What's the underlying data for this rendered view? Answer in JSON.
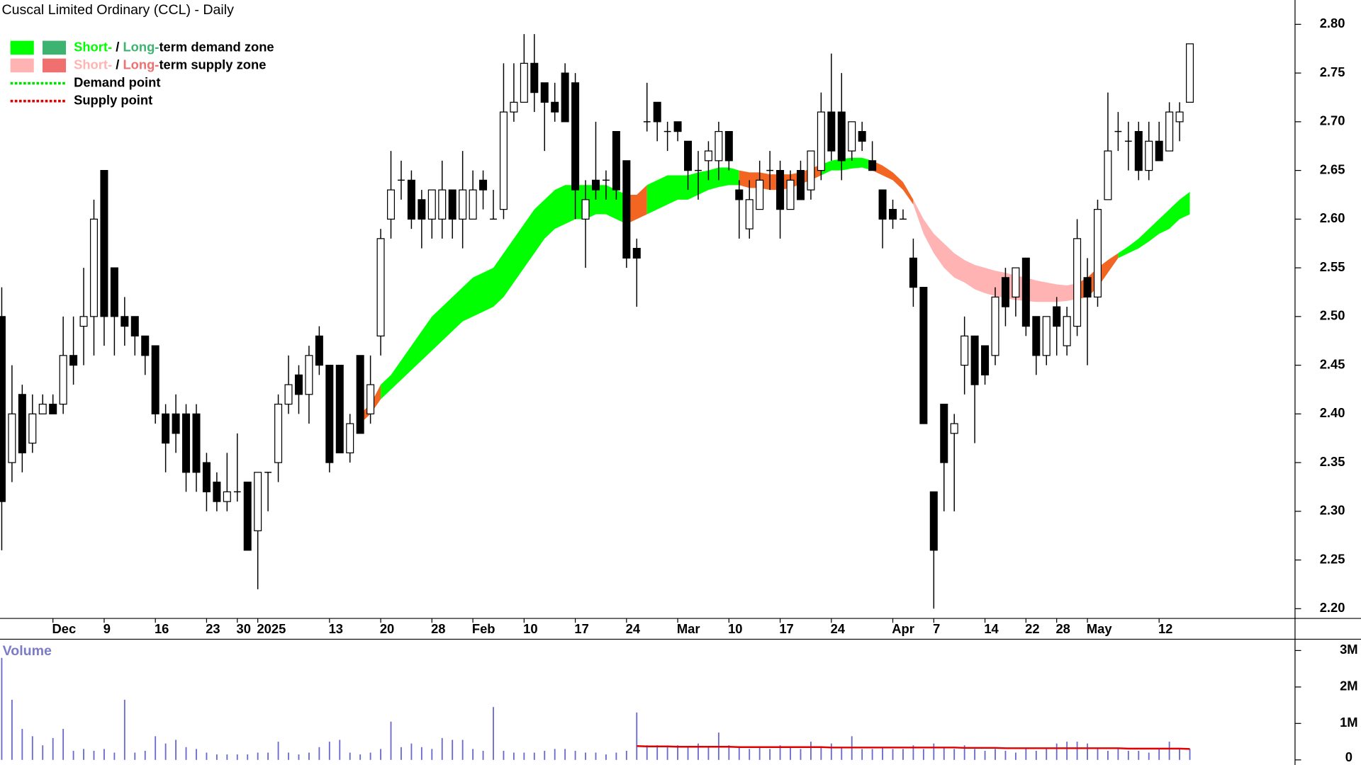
{
  "chart_data": {
    "type": "candlestick",
    "title": "Cuscal Limited Ordinary (CCL) - Daily",
    "volume_label": "Volume",
    "open": [
      2.5,
      2.35,
      2.42,
      2.37,
      2.4,
      2.41,
      2.41,
      2.46,
      2.49,
      2.5,
      2.65,
      2.55,
      2.5,
      2.5,
      2.48,
      2.47,
      2.4,
      2.4,
      2.4,
      2.4,
      2.35,
      2.33,
      2.31,
      2.32,
      2.33,
      2.28,
      2.34,
      2.35,
      2.41,
      2.44,
      2.42,
      2.48,
      2.45,
      2.45,
      2.36,
      2.46,
      2.4,
      2.48,
      2.6,
      2.64,
      2.64,
      2.62,
      2.6,
      2.6,
      2.63,
      2.6,
      2.6,
      2.64,
      2.6,
      2.61,
      2.71,
      2.72,
      2.76,
      2.74,
      2.72,
      2.75,
      2.74,
      2.6,
      2.64,
      2.64,
      2.69,
      2.66,
      2.57,
      2.7,
      2.72,
      2.69,
      2.7,
      2.68,
      2.65,
      2.66,
      2.66,
      2.69,
      2.63,
      2.59,
      2.61,
      2.65,
      2.65,
      2.61,
      2.65,
      2.63,
      2.65,
      2.71,
      2.71,
      2.67,
      2.69,
      2.66,
      2.63,
      2.61,
      2.6,
      2.56,
      2.53,
      2.32,
      2.41,
      2.38,
      2.45,
      2.48,
      2.47,
      2.46,
      2.54,
      2.52,
      2.56,
      2.5,
      2.46,
      2.51,
      2.47,
      2.49,
      2.54,
      2.52,
      2.62,
      2.69,
      2.68,
      2.69,
      2.65,
      2.68,
      2.67,
      2.7,
      2.72
    ],
    "high": [
      2.53,
      2.45,
      2.43,
      2.42,
      2.42,
      2.42,
      2.5,
      2.5,
      2.55,
      2.62,
      2.65,
      2.55,
      2.52,
      2.5,
      2.48,
      2.47,
      2.41,
      2.42,
      2.41,
      2.41,
      2.36,
      2.34,
      2.36,
      2.38,
      2.33,
      2.34,
      2.34,
      2.42,
      2.46,
      2.45,
      2.47,
      2.49,
      2.45,
      2.45,
      2.4,
      2.46,
      2.46,
      2.59,
      2.67,
      2.66,
      2.65,
      2.63,
      2.63,
      2.66,
      2.63,
      2.67,
      2.65,
      2.65,
      2.63,
      2.76,
      2.76,
      2.79,
      2.79,
      2.74,
      2.74,
      2.76,
      2.75,
      2.64,
      2.7,
      2.65,
      2.69,
      2.66,
      2.58,
      2.74,
      2.72,
      2.7,
      2.7,
      2.68,
      2.67,
      2.68,
      2.7,
      2.69,
      2.64,
      2.64,
      2.66,
      2.67,
      2.66,
      2.65,
      2.66,
      2.67,
      2.73,
      2.77,
      2.75,
      2.7,
      2.7,
      2.68,
      2.63,
      2.62,
      2.61,
      2.58,
      2.53,
      2.32,
      2.41,
      2.4,
      2.5,
      2.48,
      2.47,
      2.53,
      2.55,
      2.55,
      2.56,
      2.5,
      2.5,
      2.52,
      2.51,
      2.6,
      2.56,
      2.62,
      2.73,
      2.71,
      2.7,
      2.7,
      2.7,
      2.7,
      2.72,
      2.72,
      2.78
    ],
    "low": [
      2.26,
      2.33,
      2.34,
      2.36,
      2.4,
      2.4,
      2.4,
      2.43,
      2.45,
      2.46,
      2.47,
      2.46,
      2.47,
      2.46,
      2.44,
      2.39,
      2.34,
      2.36,
      2.32,
      2.32,
      2.3,
      2.3,
      2.3,
      2.31,
      2.26,
      2.22,
      2.3,
      2.33,
      2.4,
      2.4,
      2.39,
      2.44,
      2.34,
      2.36,
      2.35,
      2.38,
      2.39,
      2.46,
      2.58,
      2.62,
      2.59,
      2.57,
      2.58,
      2.58,
      2.58,
      2.57,
      2.6,
      2.61,
      2.6,
      2.6,
      2.7,
      2.72,
      2.71,
      2.67,
      2.7,
      2.7,
      2.6,
      2.55,
      2.62,
      2.62,
      2.62,
      2.55,
      2.51,
      2.69,
      2.68,
      2.67,
      2.68,
      2.63,
      2.62,
      2.64,
      2.64,
      2.65,
      2.58,
      2.58,
      2.61,
      2.63,
      2.58,
      2.61,
      2.62,
      2.62,
      2.64,
      2.66,
      2.64,
      2.66,
      2.67,
      2.65,
      2.57,
      2.59,
      2.6,
      2.51,
      2.39,
      2.2,
      2.3,
      2.3,
      2.42,
      2.37,
      2.43,
      2.45,
      2.49,
      2.5,
      2.48,
      2.44,
      2.45,
      2.46,
      2.46,
      2.48,
      2.45,
      2.51,
      2.62,
      2.67,
      2.65,
      2.64,
      2.64,
      2.66,
      2.67,
      2.68,
      2.72
    ],
    "close": [
      2.31,
      2.4,
      2.36,
      2.4,
      2.41,
      2.4,
      2.46,
      2.45,
      2.5,
      2.6,
      2.5,
      2.5,
      2.49,
      2.48,
      2.46,
      2.4,
      2.37,
      2.38,
      2.34,
      2.34,
      2.32,
      2.31,
      2.32,
      2.32,
      2.26,
      2.34,
      2.34,
      2.41,
      2.43,
      2.42,
      2.46,
      2.45,
      2.35,
      2.36,
      2.39,
      2.38,
      2.43,
      2.58,
      2.63,
      2.64,
      2.6,
      2.6,
      2.63,
      2.63,
      2.6,
      2.63,
      2.63,
      2.63,
      2.6,
      2.71,
      2.72,
      2.76,
      2.73,
      2.72,
      2.71,
      2.7,
      2.63,
      2.62,
      2.63,
      2.64,
      2.63,
      2.56,
      2.56,
      2.7,
      2.7,
      2.69,
      2.69,
      2.65,
      2.65,
      2.67,
      2.69,
      2.66,
      2.62,
      2.62,
      2.64,
      2.65,
      2.61,
      2.64,
      2.62,
      2.67,
      2.71,
      2.67,
      2.66,
      2.7,
      2.68,
      2.65,
      2.6,
      2.6,
      2.6,
      2.53,
      2.39,
      2.26,
      2.35,
      2.39,
      2.48,
      2.43,
      2.44,
      2.52,
      2.51,
      2.55,
      2.49,
      2.46,
      2.5,
      2.49,
      2.5,
      2.58,
      2.52,
      2.61,
      2.67,
      2.69,
      2.68,
      2.65,
      2.68,
      2.66,
      2.71,
      2.71,
      2.78
    ],
    "volume": [
      2.8,
      1.65,
      0.85,
      0.65,
      0.4,
      0.6,
      0.85,
      0.25,
      0.3,
      0.25,
      0.3,
      0.2,
      1.65,
      0.2,
      0.25,
      0.65,
      0.45,
      0.55,
      0.35,
      0.3,
      0.2,
      0.15,
      0.15,
      0.15,
      0.15,
      0.2,
      0.2,
      0.5,
      0.2,
      0.15,
      0.2,
      0.35,
      0.5,
      0.55,
      0.2,
      0.15,
      0.2,
      0.3,
      1.05,
      0.35,
      0.45,
      0.35,
      0.3,
      0.6,
      0.55,
      0.55,
      0.3,
      0.25,
      1.45,
      0.25,
      0.2,
      0.2,
      0.2,
      0.25,
      0.3,
      0.3,
      0.25,
      0.2,
      0.2,
      0.15,
      0.2,
      0.25,
      1.3,
      0.4,
      0.4,
      0.35,
      0.4,
      0.35,
      0.45,
      0.35,
      0.75,
      0.4,
      0.35,
      0.3,
      0.35,
      0.3,
      0.4,
      0.35,
      0.3,
      0.5,
      0.35,
      0.45,
      0.35,
      0.65,
      0.3,
      0.3,
      0.35,
      0.3,
      0.3,
      0.4,
      0.3,
      0.45,
      0.35,
      0.3,
      0.4,
      0.3,
      0.25,
      0.3,
      0.25,
      0.2,
      0.3,
      0.25,
      0.3,
      0.45,
      0.5,
      0.5,
      0.45,
      0.3,
      0.25,
      0.3,
      0.25,
      0.25,
      0.2,
      0.3,
      0.5,
      0.3,
      0.3
    ],
    "volume_color": "#6a6acd",
    "volume_ma": [
      null,
      null,
      null,
      null,
      null,
      null,
      null,
      null,
      null,
      null,
      null,
      null,
      null,
      null,
      null,
      null,
      null,
      null,
      null,
      null,
      null,
      null,
      null,
      null,
      null,
      null,
      null,
      null,
      null,
      null,
      null,
      null,
      null,
      null,
      null,
      null,
      null,
      null,
      null,
      null,
      null,
      null,
      null,
      null,
      null,
      null,
      null,
      null,
      null,
      null,
      null,
      null,
      null,
      null,
      null,
      null,
      null,
      null,
      null,
      null,
      null,
      null,
      0.38,
      0.37,
      0.37,
      0.37,
      0.36,
      0.36,
      0.36,
      0.36,
      0.36,
      0.36,
      0.35,
      0.35,
      0.35,
      0.35,
      0.35,
      0.35,
      0.35,
      0.35,
      0.35,
      0.34,
      0.34,
      0.34,
      0.34,
      0.34,
      0.34,
      0.34,
      0.34,
      0.34,
      0.34,
      0.34,
      0.34,
      0.34,
      0.33,
      0.33,
      0.33,
      0.33,
      0.32,
      0.32,
      0.32,
      0.32,
      0.32,
      0.32,
      0.32,
      0.32,
      0.32,
      0.32,
      0.32,
      0.32,
      0.31,
      0.31,
      0.31,
      0.31,
      0.31,
      0.31,
      0.3
    ],
    "volume_ma_color": "#e00000",
    "zone_top": [
      null,
      null,
      null,
      null,
      null,
      null,
      null,
      null,
      null,
      null,
      null,
      null,
      null,
      null,
      null,
      null,
      null,
      null,
      null,
      null,
      null,
      null,
      null,
      null,
      null,
      null,
      null,
      null,
      null,
      null,
      null,
      null,
      null,
      null,
      null,
      2.4,
      2.41,
      2.43,
      2.44,
      2.455,
      2.47,
      2.485,
      2.5,
      2.51,
      2.52,
      2.53,
      2.54,
      2.545,
      2.55,
      2.565,
      2.58,
      2.595,
      2.61,
      2.62,
      2.63,
      2.635,
      2.635,
      2.635,
      2.635,
      2.635,
      2.63,
      2.625,
      2.625,
      2.635,
      2.64,
      2.645,
      2.645,
      2.645,
      2.648,
      2.65,
      2.653,
      2.653,
      2.65,
      2.648,
      2.648,
      2.646,
      2.646,
      2.646,
      2.648,
      2.652,
      2.656,
      2.66,
      2.662,
      2.663,
      2.663,
      2.66,
      2.655,
      2.648,
      2.638,
      2.62,
      2.6,
      2.585,
      2.575,
      2.565,
      2.558,
      2.553,
      2.55,
      2.547,
      2.545,
      2.542,
      2.54,
      2.537,
      2.535,
      2.533,
      2.532,
      2.534,
      2.54,
      2.55,
      2.558,
      2.565,
      2.572,
      2.58,
      2.59,
      2.6,
      2.61,
      2.62,
      2.628
    ],
    "zone_bottom": [
      null,
      null,
      null,
      null,
      null,
      null,
      null,
      null,
      null,
      null,
      null,
      null,
      null,
      null,
      null,
      null,
      null,
      null,
      null,
      null,
      null,
      null,
      null,
      null,
      null,
      null,
      null,
      null,
      null,
      null,
      null,
      null,
      null,
      null,
      null,
      2.39,
      2.4,
      2.415,
      2.425,
      2.435,
      2.445,
      2.455,
      2.465,
      2.475,
      2.485,
      2.495,
      2.5,
      2.505,
      2.51,
      2.52,
      2.535,
      2.55,
      2.565,
      2.58,
      2.59,
      2.595,
      2.6,
      2.6,
      2.605,
      2.605,
      2.6,
      2.595,
      2.6,
      2.605,
      2.61,
      2.615,
      2.62,
      2.62,
      2.625,
      2.63,
      2.633,
      2.635,
      2.635,
      2.632,
      2.632,
      2.63,
      2.63,
      2.632,
      2.636,
      2.64,
      2.645,
      2.65,
      2.65,
      2.652,
      2.653,
      2.65,
      2.645,
      2.64,
      2.63,
      2.615,
      2.585,
      2.565,
      2.55,
      2.54,
      2.535,
      2.528,
      2.524,
      2.521,
      2.519,
      2.517,
      2.516,
      2.515,
      2.515,
      2.515,
      2.516,
      2.518,
      2.52,
      2.53,
      2.545,
      2.56,
      2.565,
      2.57,
      2.577,
      2.585,
      2.59,
      2.6,
      2.605
    ],
    "zones": [
      {
        "from": 35,
        "to": 36,
        "color": "#f26522"
      },
      {
        "from": 37,
        "to": 60,
        "color": "#00ff00"
      },
      {
        "from": 61,
        "to": 62,
        "color": "#f26522"
      },
      {
        "from": 63,
        "to": 71,
        "color": "#00ff00"
      },
      {
        "from": 72,
        "to": 79,
        "color": "#f26522"
      },
      {
        "from": 80,
        "to": 84,
        "color": "#00ff00"
      },
      {
        "from": 85,
        "to": 88,
        "color": "#f26522"
      },
      {
        "from": 89,
        "to": 104,
        "color": "#ffb3b3"
      },
      {
        "from": 105,
        "to": 108,
        "color": "#f26522"
      },
      {
        "from": 109,
        "to": 116,
        "color": "#00ff00"
      }
    ],
    "ylim": [
      2.19,
      2.825
    ],
    "yticks": [
      {
        "value": 2.2,
        "label": "2.20"
      },
      {
        "value": 2.25,
        "label": "2.25"
      },
      {
        "value": 2.3,
        "label": "2.30"
      },
      {
        "value": 2.35,
        "label": "2.35"
      },
      {
        "value": 2.4,
        "label": "2.40"
      },
      {
        "value": 2.45,
        "label": "2.45"
      },
      {
        "value": 2.5,
        "label": "2.50"
      },
      {
        "value": 2.55,
        "label": "2.55"
      },
      {
        "value": 2.6,
        "label": "2.60"
      },
      {
        "value": 2.65,
        "label": "2.65"
      },
      {
        "value": 2.7,
        "label": "2.70"
      },
      {
        "value": 2.75,
        "label": "2.75"
      },
      {
        "value": 2.8,
        "label": "2.80"
      }
    ],
    "vlim": [
      -0.14,
      3.31
    ],
    "vticks": [
      0,
      {
        "value": 1,
        "label": "1M"
      },
      {
        "value": 2,
        "label": "2M"
      },
      {
        "value": 3,
        "label": "3M"
      }
    ],
    "xticks": [
      {
        "value": 5,
        "label": "Dec"
      },
      {
        "value": 10,
        "label": "9"
      },
      {
        "value": 15,
        "label": "16"
      },
      {
        "value": 20,
        "label": "23"
      },
      {
        "value": 23,
        "label": "30"
      },
      {
        "value": 25,
        "label": "2025"
      },
      {
        "value": 32,
        "label": "13"
      },
      {
        "value": 37,
        "label": "20"
      },
      {
        "value": 42,
        "label": "28"
      },
      {
        "value": 46,
        "label": "Feb"
      },
      {
        "value": 51,
        "label": "10"
      },
      {
        "value": 56,
        "label": "17"
      },
      {
        "value": 61,
        "label": "24"
      },
      {
        "value": 66,
        "label": "Mar"
      },
      {
        "value": 71,
        "label": "10"
      },
      {
        "value": 76,
        "label": "17"
      },
      {
        "value": 81,
        "label": "24"
      },
      {
        "value": 87,
        "label": "Apr"
      },
      {
        "value": 91,
        "label": "7"
      },
      {
        "value": 96,
        "label": "14"
      },
      {
        "value": 100,
        "label": "22"
      },
      {
        "value": 103,
        "label": "28"
      },
      {
        "value": 106,
        "label": "May"
      },
      {
        "value": 113,
        "label": "12"
      }
    ],
    "legend": [
      {
        "swatches": [
          "#00ff00",
          "#3cb371"
        ],
        "parts": [
          {
            "text": "Short-",
            "color": "#00ff00"
          },
          {
            "text": " / ",
            "color": "#000000"
          },
          {
            "text": "Long-",
            "color": "#3cb371"
          },
          {
            "text": "term demand zone",
            "color": "#000000"
          }
        ]
      },
      {
        "swatches": [
          "#ffb3b3",
          "#f07070"
        ],
        "parts": [
          {
            "text": "Short-",
            "color": "#ffb3b3"
          },
          {
            "text": " / ",
            "color": "#000000"
          },
          {
            "text": "Long-",
            "color": "#f07070"
          },
          {
            "text": "term supply zone",
            "color": "#000000"
          }
        ]
      },
      {
        "line": "#00e000",
        "parts": [
          {
            "text": "Demand point",
            "color": "#000000"
          }
        ]
      },
      {
        "line": "#e00000",
        "parts": [
          {
            "text": "Supply point",
            "color": "#000000"
          }
        ]
      }
    ]
  }
}
